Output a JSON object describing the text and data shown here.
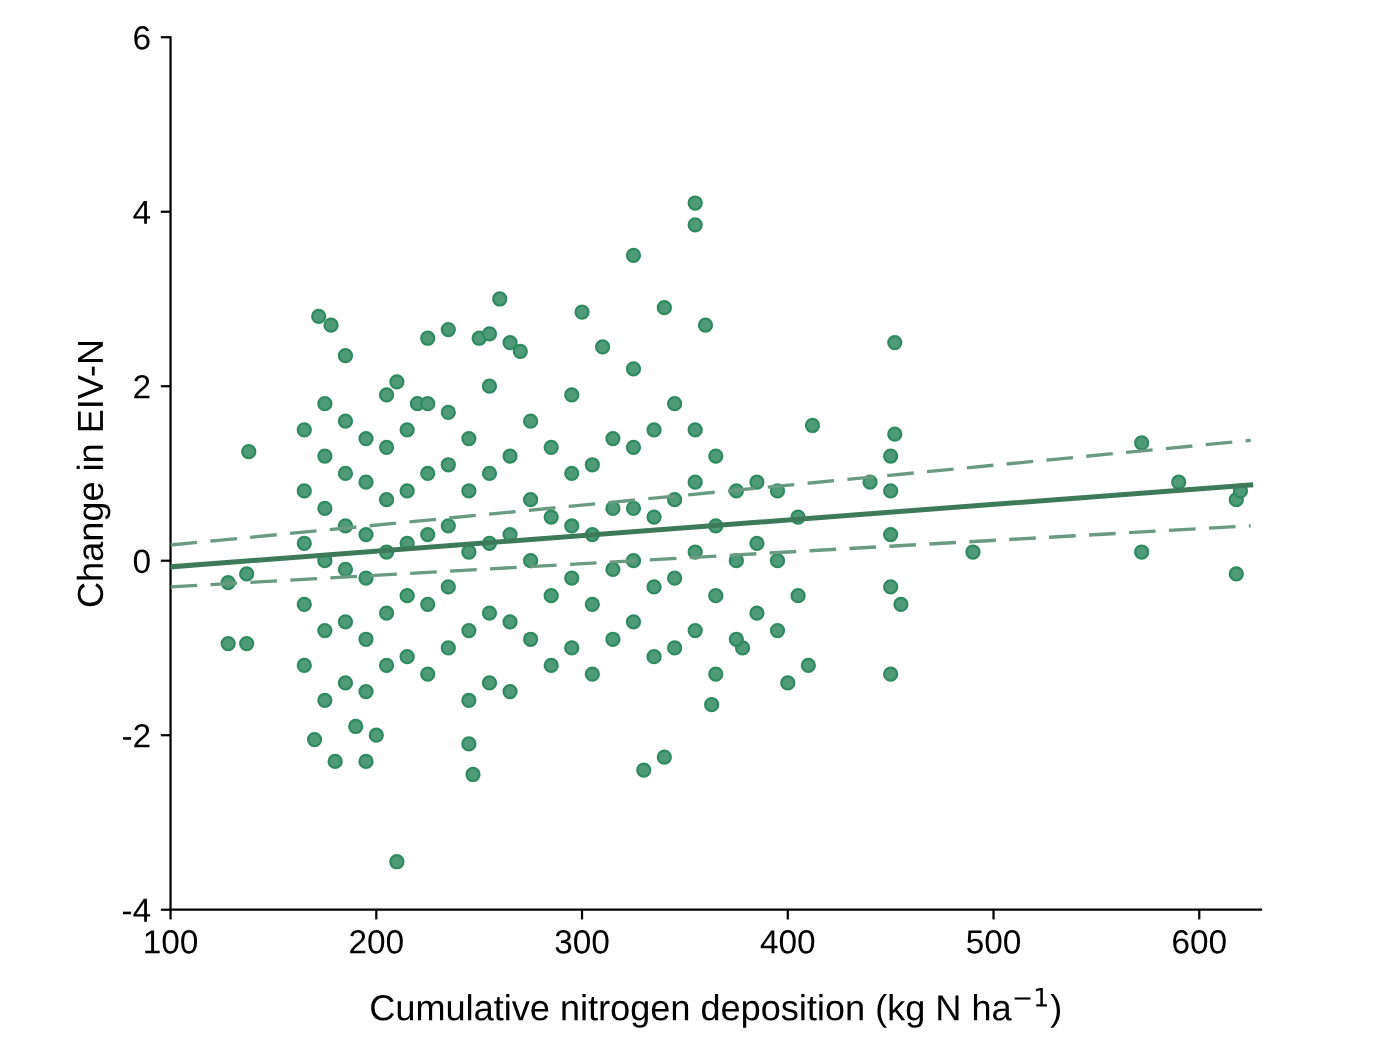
{
  "chart_data": {
    "type": "scatter",
    "xlabel": "Cumulative nitrogen deposition (kg N ha$^{−1}$)",
    "ylabel": "Change in EIV-N",
    "xlim": [
      100,
      630
    ],
    "ylim": [
      -4,
      6
    ],
    "xticks": [
      100,
      200,
      300,
      400,
      500,
      600
    ],
    "yticks": [
      -4,
      -2,
      0,
      2,
      4,
      6
    ],
    "grid": false,
    "marker": "circle",
    "series": [
      {
        "color": "#4f9a78",
        "x": [
          128,
          137,
          138,
          128,
          137,
          172,
          178,
          185,
          170,
          180,
          190,
          195,
          200,
          205,
          210,
          210,
          220,
          225,
          235,
          245,
          247,
          250,
          255,
          260,
          265,
          270,
          300,
          310,
          325,
          330,
          340,
          340,
          355,
          355,
          360,
          363,
          378,
          400,
          410,
          412,
          440,
          450,
          452,
          452,
          490,
          572,
          572,
          590,
          618,
          618,
          620,
          165,
          165,
          165,
          165,
          165,
          175,
          175,
          175,
          175,
          175,
          175,
          185,
          185,
          185,
          185,
          185,
          185,
          195,
          195,
          195,
          195,
          195,
          195,
          205,
          205,
          205,
          205,
          205,
          215,
          215,
          215,
          215,
          215,
          225,
          225,
          225,
          225,
          225,
          235,
          235,
          235,
          235,
          235,
          245,
          245,
          245,
          245,
          245,
          255,
          255,
          255,
          255,
          255,
          265,
          265,
          265,
          265,
          275,
          275,
          275,
          275,
          285,
          285,
          285,
          285,
          295,
          295,
          295,
          295,
          295,
          305,
          305,
          305,
          305,
          315,
          315,
          315,
          315,
          325,
          325,
          325,
          325,
          325,
          335,
          335,
          335,
          335,
          345,
          345,
          345,
          345,
          355,
          355,
          355,
          355,
          365,
          365,
          365,
          365,
          375,
          375,
          375,
          385,
          385,
          385,
          395,
          395,
          395,
          405,
          405,
          450,
          450,
          450,
          450,
          455
        ],
        "values": [
          -0.95,
          -0.95,
          1.25,
          -0.25,
          -0.15,
          2.8,
          2.7,
          2.35,
          -2.05,
          -2.3,
          -1.9,
          -2.3,
          -2.0,
          1.9,
          -3.45,
          2.05,
          1.8,
          2.55,
          2.65,
          -2.1,
          -2.45,
          2.55,
          2.6,
          3.0,
          2.5,
          2.4,
          2.85,
          2.45,
          3.5,
          -2.4,
          -2.25,
          2.9,
          4.1,
          3.85,
          2.7,
          -1.65,
          -1.0,
          -1.4,
          -1.2,
          1.55,
          0.9,
          -1.3,
          2.5,
          1.45,
          0.1,
          1.35,
          0.1,
          0.9,
          0.7,
          -0.15,
          0.8,
          -1.2,
          -0.5,
          0.2,
          0.8,
          1.5,
          -1.6,
          -0.8,
          0.0,
          0.6,
          1.2,
          1.8,
          -1.4,
          -0.7,
          -0.1,
          0.4,
          1.0,
          1.6,
          -1.5,
          -0.9,
          -0.2,
          0.3,
          0.9,
          1.4,
          -1.2,
          -0.6,
          0.1,
          0.7,
          1.3,
          -1.1,
          -0.4,
          0.2,
          0.8,
          1.5,
          -1.3,
          -0.5,
          0.3,
          1.0,
          1.8,
          -1.0,
          -0.3,
          0.4,
          1.1,
          1.7,
          -1.6,
          -0.8,
          0.1,
          0.8,
          1.4,
          -1.4,
          -0.6,
          0.2,
          1.0,
          2.0,
          -1.5,
          -0.7,
          0.3,
          1.2,
          -0.9,
          0.0,
          0.7,
          1.6,
          -1.2,
          -0.4,
          0.5,
          1.3,
          -1.0,
          -0.2,
          0.4,
          1.0,
          1.9,
          -1.3,
          -0.5,
          0.3,
          1.1,
          -0.9,
          -0.1,
          0.6,
          1.4,
          -0.7,
          0.0,
          0.6,
          1.3,
          2.2,
          -1.1,
          -0.3,
          0.5,
          1.5,
          -1.0,
          -0.2,
          0.7,
          1.8,
          -0.8,
          0.1,
          0.9,
          1.5,
          -1.3,
          -0.4,
          0.4,
          1.2,
          -0.9,
          0.0,
          0.8,
          -0.6,
          0.2,
          0.9,
          -0.8,
          0.0,
          0.8,
          -0.4,
          0.5,
          -0.3,
          0.3,
          0.8,
          1.2,
          -0.5
        ]
      },
      {
        "type": "line",
        "color": "#3d7a5a",
        "line_style": "solid",
        "marker": "none",
        "x": [
          100,
          625
        ],
        "values": [
          -0.07,
          0.87
        ]
      },
      {
        "type": "line",
        "color": "#6a9a80",
        "line_style": "dashed",
        "marker": "none",
        "x": [
          100,
          625
        ],
        "values": [
          0.18,
          1.38
        ]
      },
      {
        "type": "line",
        "color": "#6a9a80",
        "line_style": "dashed",
        "marker": "none",
        "x": [
          100,
          625
        ],
        "values": [
          -0.3,
          0.4
        ]
      }
    ]
  }
}
